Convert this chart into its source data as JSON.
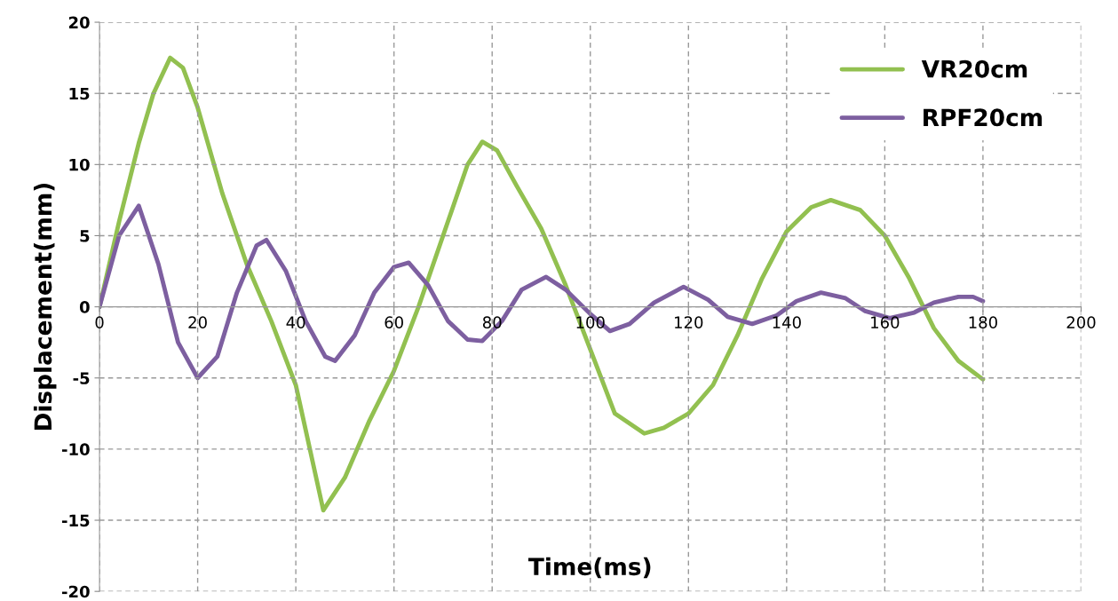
{
  "chart_data": {
    "type": "line",
    "xlabel": "Time(ms)",
    "ylabel": "Displacement(mm)",
    "xlim": [
      0,
      200
    ],
    "xticks": [
      0,
      20,
      40,
      60,
      80,
      100,
      120,
      140,
      160,
      180,
      200
    ],
    "ylim": [
      -20,
      20
    ],
    "yticks": [
      -20,
      -15,
      -10,
      -5,
      0,
      5,
      10,
      15,
      20
    ],
    "grid": true,
    "legend": "top right",
    "marker": "none",
    "line_style": "solid",
    "series": [
      {
        "name": "VR20cm",
        "color": "#92c050",
        "x": [
          0,
          4,
          8,
          11,
          14.4,
          17,
          20,
          25,
          30,
          35,
          40,
          45.6,
          50,
          55,
          60,
          65,
          70,
          75,
          78,
          81,
          85,
          90,
          95,
          100,
          105,
          111,
          115,
          120,
          125,
          130,
          135,
          140,
          145,
          149,
          155,
          160,
          165,
          170,
          175,
          180
        ],
        "values": [
          0,
          6,
          11.5,
          15,
          17.5,
          16.8,
          14,
          8,
          3,
          -1,
          -5.5,
          -14.3,
          -12,
          -8,
          -4.5,
          0,
          5,
          10,
          11.6,
          11,
          8.5,
          5.5,
          1.5,
          -3,
          -7.5,
          -8.9,
          -8.5,
          -7.5,
          -5.5,
          -2,
          2,
          5.3,
          7,
          7.5,
          6.8,
          5,
          2,
          -1.5,
          -3.8,
          -5.1
        ]
      },
      {
        "name": "RPF20cm",
        "color": "#7d5fa0",
        "x": [
          0,
          4,
          8,
          12,
          16,
          20,
          24,
          28,
          32,
          34,
          38,
          42,
          46,
          48,
          52,
          56,
          60,
          63,
          67,
          71,
          75,
          78,
          82,
          86,
          91,
          95,
          100,
          104,
          108,
          113,
          119,
          124,
          128,
          133,
          138,
          142,
          147,
          152,
          156,
          161,
          166,
          170,
          175,
          178,
          180
        ],
        "values": [
          0,
          5,
          7.1,
          3,
          -2.5,
          -5,
          -3.5,
          1,
          4.3,
          4.7,
          2.5,
          -1,
          -3.5,
          -3.8,
          -2,
          1,
          2.8,
          3.1,
          1.5,
          -1,
          -2.3,
          -2.4,
          -1,
          1.2,
          2.1,
          1.2,
          -0.5,
          -1.7,
          -1.2,
          0.3,
          1.4,
          0.5,
          -0.7,
          -1.2,
          -0.6,
          0.4,
          1,
          0.6,
          -0.3,
          -0.8,
          -0.4,
          0.3,
          0.7,
          0.7,
          0.4
        ]
      }
    ]
  }
}
